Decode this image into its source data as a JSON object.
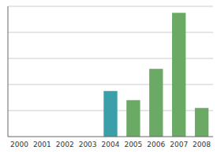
{
  "chart_data": {
    "type": "bar",
    "categories": [
      "2000",
      "2001",
      "2002",
      "2003",
      "2004",
      "2005",
      "2006",
      "2007",
      "2008"
    ],
    "values": [
      0,
      0,
      0,
      0,
      3.5,
      2.8,
      5.2,
      9.5,
      2.2
    ],
    "colors": [
      "#6aaa64",
      "#6aaa64",
      "#6aaa64",
      "#6aaa64",
      "#3a9fa8",
      "#6aaa64",
      "#6aaa64",
      "#6aaa64",
      "#6aaa64"
    ],
    "ylim": [
      0,
      10
    ],
    "yticks": [
      2,
      4,
      6,
      8,
      10
    ],
    "grid": true,
    "tick_labels": "x"
  }
}
